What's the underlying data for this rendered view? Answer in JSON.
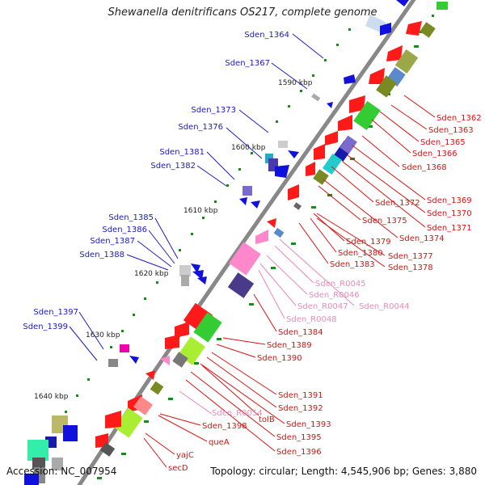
{
  "title": "Shewanella denitrificans OS217, complete genome",
  "footer": {
    "accession": "Accession: NC_007954",
    "stats": "Topology: circular; Length: 4,545,906 bp; Genes: 3,880"
  },
  "colors": {
    "backbone": "#888888",
    "forward_label": "#1a1acc",
    "reverse_label": "#dd1111",
    "rna_label": "#ee88bb",
    "tick_dot": "#1a8a1a"
  },
  "kbp_labels": [
    "1590 kbp",
    "1600 kbp",
    "1610 kbp",
    "1620 kbp",
    "1630 kbp",
    "1640 kbp"
  ],
  "left_labels": [
    "Sden_1364",
    "Sden_1367",
    "Sden_1373",
    "Sden_1376",
    "Sden_1381",
    "Sden_1382",
    "Sden_1385",
    "Sden_1386",
    "Sden_1387",
    "Sden_1388",
    "Sden_1397",
    "Sden_1399"
  ],
  "right_labels": [
    "Sden_1362",
    "Sden_1363",
    "Sden_1365",
    "Sden_1366",
    "Sden_1368",
    "Sden_1369",
    "Sden_1370",
    "Sden_1371",
    "Sden_1372",
    "Sden_1374",
    "Sden_1375",
    "Sden_1377",
    "Sden_1378",
    "Sden_1379",
    "Sden_1380",
    "Sden_1383",
    "Sden_R0044",
    "Sden_R0045",
    "Sden_R0046",
    "Sden_R0047",
    "Sden_R0048",
    "Sden_1384",
    "Sden_1389",
    "Sden_1390",
    "Sden_1391",
    "Sden_1392",
    "Sden_1393",
    "Sden_R0054",
    "tolB",
    "Sden_1395",
    "Sden_1396",
    "Sden_1398",
    "queA",
    "yajC",
    "secD"
  ]
}
